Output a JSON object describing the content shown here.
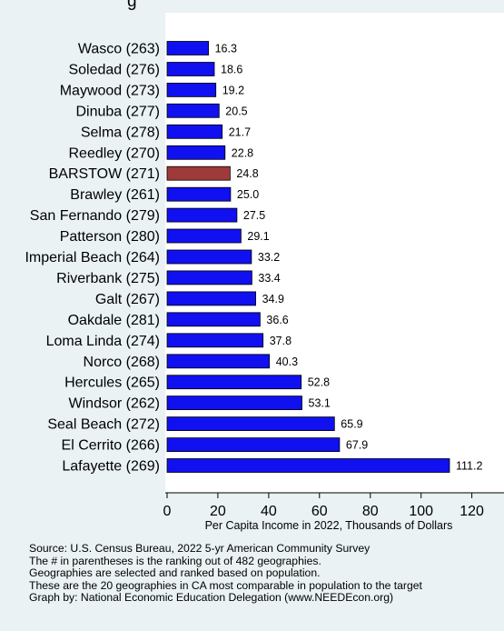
{
  "title_fragment": "g",
  "chart_data": {
    "type": "bar",
    "orientation": "horizontal",
    "categories": [
      "Wasco (263)",
      "Soledad (276)",
      "Maywood (273)",
      "Dinuba (277)",
      "Selma (278)",
      "Reedley (270)",
      "BARSTOW (271)",
      "Brawley (261)",
      "San Fernando (279)",
      "Patterson (280)",
      "Imperial Beach (264)",
      "Riverbank (275)",
      "Galt (267)",
      "Oakdale (281)",
      "Loma Linda (274)",
      "Norco (268)",
      "Hercules (265)",
      "Windsor (262)",
      "Seal Beach (272)",
      "El Cerrito (266)",
      "Lafayette (269)"
    ],
    "values": [
      16.3,
      18.6,
      19.2,
      20.5,
      21.7,
      22.8,
      24.8,
      25.0,
      27.5,
      29.1,
      33.2,
      33.4,
      34.9,
      36.6,
      37.8,
      40.3,
      52.8,
      53.1,
      65.9,
      67.9,
      111.2
    ],
    "value_labels": [
      "16.3",
      "18.6",
      "19.2",
      "20.5",
      "21.7",
      "22.8",
      "24.8",
      "25.0",
      "27.5",
      "29.1",
      "33.2",
      "33.4",
      "34.9",
      "36.6",
      "37.8",
      "40.3",
      "52.8",
      "53.1",
      "65.9",
      "67.9",
      "111.2"
    ],
    "highlight_category": "BARSTOW (271)",
    "xlabel": "Per Capita Income in 2022, Thousands of Dollars",
    "xlim": [
      0,
      128
    ],
    "xticks": [
      "0",
      "20",
      "40",
      "60",
      "80",
      "100",
      "120"
    ],
    "xtick_values": [
      0,
      20,
      40,
      60,
      80,
      100,
      120
    ],
    "grid": false,
    "colors": {
      "bar": "#1010f0",
      "highlight": "#9e3a3a",
      "background": "#eaf2f3",
      "plot_background": "#ffffff"
    }
  },
  "notes": [
    "Source: U.S. Census Bureau, 2022 5-yr American Community Survey",
    "The # in parentheses is the ranking out of 482 geographies.",
    "Geographies are selected and ranked based on population.",
    "These are the 20 geographies in CA most comparable in population to the target",
    "Graph by: National Economic Education Delegation (www.NEEDEcon.org)"
  ]
}
